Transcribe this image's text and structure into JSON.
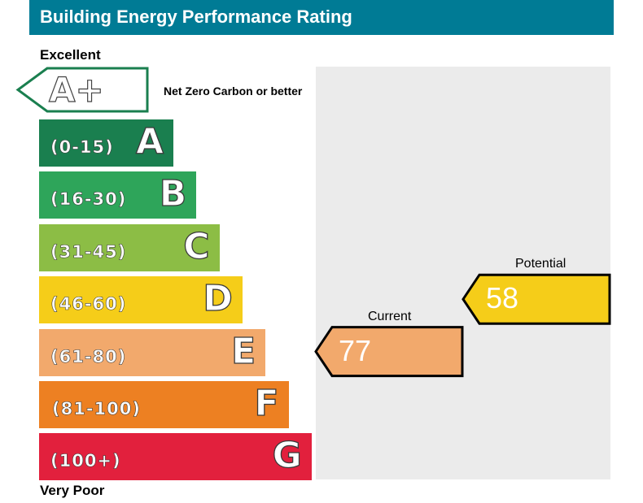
{
  "header": {
    "title": "Building Energy Performance Rating"
  },
  "scale": {
    "top_label": "Excellent",
    "bottom_label": "Very Poor"
  },
  "chart_data": {
    "type": "bar",
    "title": "Building Energy Performance Rating",
    "aplus": {
      "letter": "A+",
      "note": "Net Zero Carbon or better",
      "color": "#1a7f4f"
    },
    "bands": [
      {
        "letter": "A",
        "range": "(0-15)",
        "color": "#1a7f4f"
      },
      {
        "letter": "B",
        "range": "(16-30)",
        "color": "#2ea55a"
      },
      {
        "letter": "C",
        "range": "(31-45)",
        "color": "#8cbd45"
      },
      {
        "letter": "D",
        "range": "(46-60)",
        "color": "#f5cd19"
      },
      {
        "letter": "E",
        "range": "(61-80)",
        "color": "#f2a96c"
      },
      {
        "letter": "F",
        "range": "(81-100)",
        "color": "#ed8022"
      },
      {
        "letter": "G",
        "range": "(100+)",
        "color": "#e2203d"
      }
    ],
    "ratings": {
      "current": {
        "label": "Current",
        "value": 77,
        "band": "E",
        "color": "#f2a96c"
      },
      "potential": {
        "label": "Potential",
        "value": 58,
        "band": "D",
        "color": "#f5cd19"
      }
    }
  }
}
